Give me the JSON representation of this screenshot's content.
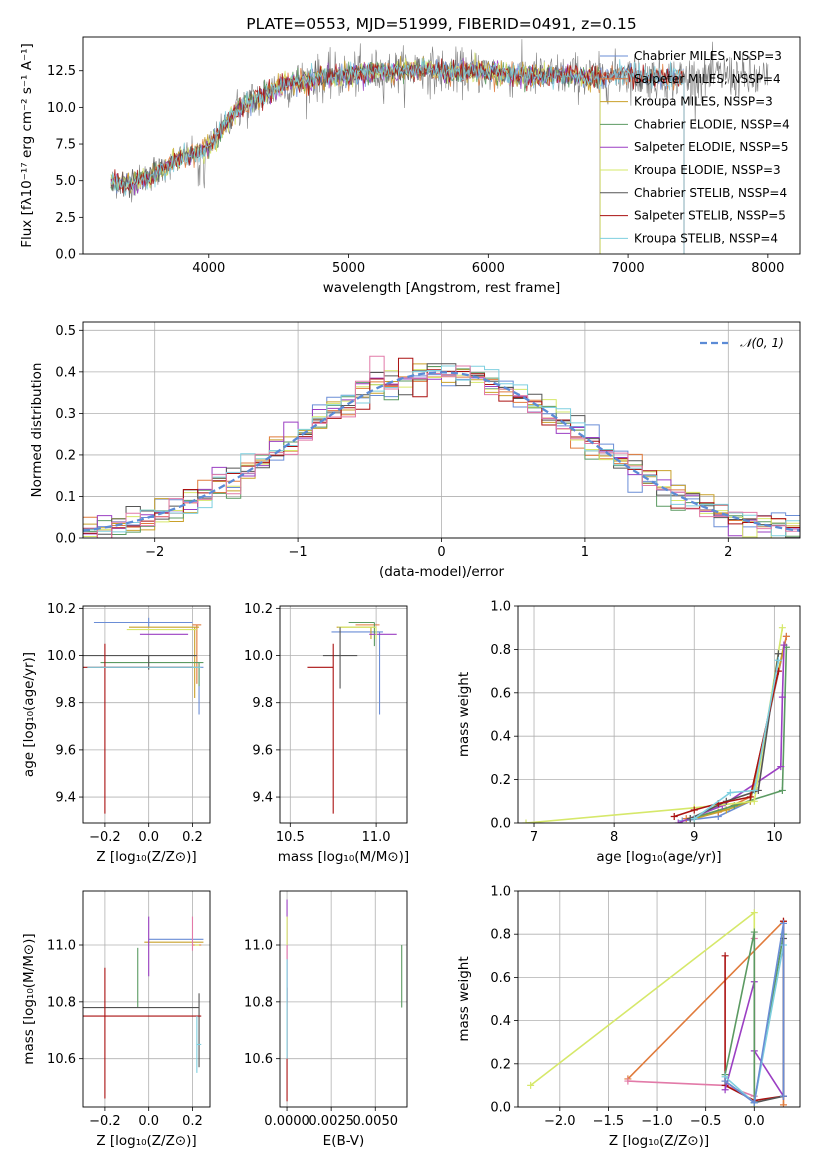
{
  "figure_title": "PLATE=0553, MJD=51999, FIBERID=0491, z=0.15",
  "colors": {
    "models": [
      "#6a8dd6",
      "#e07b3c",
      "#c9a12a",
      "#5b9a62",
      "#9b3fc3",
      "#d6e86a",
      "#555555",
      "#aa1111",
      "#7ecfdf"
    ],
    "extra": [
      "#e27aa8",
      "#b4e04a",
      "#e0b840"
    ]
  },
  "chart_data": [
    {
      "id": "spectrum",
      "type": "line",
      "title": "PLATE=0553, MJD=51999, FIBERID=0491, z=0.15",
      "xlabel": "wavelength [Angstrom, rest frame]",
      "ylabel": "Flux [fλ10⁻¹⁷ erg cm⁻² s⁻¹ A⁻¹]",
      "xlim": [
        3100,
        8230
      ],
      "ylim": [
        0,
        14.8
      ],
      "xticks": [
        "4000",
        "5000",
        "6000",
        "7000",
        "8000"
      ],
      "yticks": [
        "0.0",
        "2.5",
        "5.0",
        "7.5",
        "10.0",
        "12.5"
      ],
      "grid": false,
      "legend": "top-right",
      "legend_entries": [
        "Chabrier MILES, N_SSP=3",
        "Salpeter MILES, N_SSP=4",
        "Kroupa MILES, N_SSP=3",
        "Chabrier ELODIE, N_SSP=4",
        "Salpeter ELODIE, N_SSP=5",
        "Kroupa ELODIE, N_SSP=3",
        "Chabrier STELIB, N_SSP=4",
        "Salpeter STELIB, N_SSP=5",
        "Kroupa STELIB, N_SSP=4"
      ],
      "continuum": {
        "x": [
          3300,
          3400,
          3500,
          3600,
          3700,
          3800,
          3900,
          4000,
          4100,
          4200,
          4300,
          4400,
          4500,
          4600,
          4700,
          4800,
          4900,
          5000,
          5100,
          5200,
          5300,
          5400,
          5500,
          5600,
          5700,
          5800,
          5900,
          6000,
          6100,
          6200,
          6300,
          6400,
          6500,
          6600,
          6700,
          6800,
          6900,
          7000,
          7100,
          7200,
          7300,
          7400,
          7500,
          7600,
          7700,
          7800,
          7900,
          8000
        ],
        "y": [
          4.9,
          4.8,
          5.0,
          5.4,
          6.0,
          6.6,
          6.8,
          7.3,
          8.6,
          9.8,
          10.4,
          10.9,
          11.4,
          11.7,
          11.8,
          12.0,
          12.1,
          12.2,
          12.3,
          12.4,
          12.4,
          12.5,
          12.6,
          12.5,
          12.4,
          12.4,
          12.5,
          12.4,
          12.3,
          12.2,
          12.2,
          12.1,
          12.2,
          12.2,
          12.1,
          12.0,
          12.2,
          12.3,
          12.1,
          12.0,
          12.0,
          12.0,
          12.0,
          12.1,
          12.2,
          12.0,
          11.9,
          11.8
        ]
      },
      "model_xmax": [
        7400,
        7400,
        6800,
        6800,
        6800,
        6800,
        7400,
        7400,
        7400
      ]
    },
    {
      "id": "residuals",
      "type": "line",
      "xlabel": "(data-model)/error",
      "ylabel": "Normed distribution",
      "xlim": [
        -2.5,
        2.5
      ],
      "ylim": [
        0,
        0.52
      ],
      "xticks": [
        "−2",
        "−1",
        "0",
        "1",
        "2"
      ],
      "yticks": [
        "0.0",
        "0.1",
        "0.2",
        "0.3",
        "0.4",
        "0.5"
      ],
      "grid": true,
      "legend": "top-right",
      "legend_entries": [
        "𝒩(0, 1)"
      ],
      "gaussian": {
        "mean": 0,
        "sigma": 1
      }
    },
    {
      "id": "age-vs-Z",
      "type": "scatter",
      "xlabel": "Z [log₁₀(Z/Z⊙)]",
      "ylabel": "age  [log₁₀(age/yr)]",
      "xlim": [
        -0.3,
        0.28
      ],
      "ylim": [
        9.29,
        10.21
      ],
      "xticks": [
        "−0.2",
        "0.0",
        "0.2"
      ],
      "yticks": [
        "9.4",
        "9.6",
        "9.8",
        "10.0",
        "10.2"
      ],
      "grid": true,
      "errorbars": [
        {
          "x": 0.23,
          "y": 9.95,
          "xerr": [
            0.45,
            0.02
          ],
          "yerr": [
            0.2,
            0.0
          ],
          "c": 0
        },
        {
          "x": 0.0,
          "y": 10.14,
          "xerr": [
            0.25,
            0.2
          ],
          "yerr": [
            0.02,
            0.02
          ],
          "c": 0
        },
        {
          "x": 0.22,
          "y": 10.13,
          "xerr": [
            0.02,
            0.02
          ],
          "yerr": [
            0.25,
            0.0
          ],
          "c": 1
        },
        {
          "x": 0.21,
          "y": 10.12,
          "xerr": [
            0.3,
            0.02
          ],
          "yerr": [
            0.3,
            0.0
          ],
          "c": 2
        },
        {
          "x": 0.23,
          "y": 9.97,
          "xerr": [
            0.45,
            0.02
          ],
          "yerr": [
            0.1,
            0.0
          ],
          "c": 3
        },
        {
          "x": 0.16,
          "y": 10.09,
          "xerr": [
            0.2,
            0.02
          ],
          "yerr": [
            0.0,
            0.0
          ],
          "c": 4
        },
        {
          "x": 0.22,
          "y": 10.11,
          "xerr": [
            0.32,
            0.0
          ],
          "yerr": [
            0.0,
            0.0
          ],
          "c": 5
        },
        {
          "x": 0.0,
          "y": 10.0,
          "xerr": [
            0.3,
            0.22
          ],
          "yerr": [
            0.06,
            0.0
          ],
          "c": 6
        },
        {
          "x": -0.2,
          "y": 9.95,
          "xerr": [
            0.1,
            0.4
          ],
          "yerr": [
            0.62,
            0.1
          ],
          "c": 7
        },
        {
          "x": 0.22,
          "y": 9.95,
          "xerr": [
            0.5,
            0.02
          ],
          "yerr": [
            0.0,
            0.0
          ],
          "c": 8
        }
      ]
    },
    {
      "id": "age-vs-mass",
      "type": "scatter",
      "xlabel": "mass [log₁₀(M/M⊙)]",
      "ylabel": "",
      "xlim": [
        10.44,
        11.18
      ],
      "ylim": [
        9.29,
        10.21
      ],
      "xticks": [
        "10.5",
        "11.0"
      ],
      "yticks": [
        "9.4",
        "9.6",
        "9.8",
        "10.0",
        "10.2"
      ],
      "grid": true,
      "errorbars": [
        {
          "x": 11.02,
          "y": 10.1,
          "xerr": [
            0.28,
            0.02
          ],
          "yerr": [
            0.35,
            0.0
          ],
          "c": 0
        },
        {
          "x": 10.98,
          "y": 10.13,
          "xerr": [
            0.1,
            0.04
          ],
          "yerr": [
            0.0,
            0.0
          ],
          "c": 1
        },
        {
          "x": 10.97,
          "y": 10.12,
          "xerr": [
            0.2,
            0.02
          ],
          "yerr": [
            0.05,
            0.0
          ],
          "c": 2
        },
        {
          "x": 10.99,
          "y": 10.14,
          "xerr": [
            0.15,
            0.0
          ],
          "yerr": [
            0.1,
            0.0
          ],
          "c": 3
        },
        {
          "x": 11.06,
          "y": 10.09,
          "xerr": [
            0.1,
            0.06
          ],
          "yerr": [
            0.0,
            0.0
          ],
          "c": 4
        },
        {
          "x": 11.0,
          "y": 10.12,
          "xerr": [
            0.22,
            0.0
          ],
          "yerr": [
            0.05,
            0.0
          ],
          "c": 5
        },
        {
          "x": 10.79,
          "y": 10.0,
          "xerr": [
            0.1,
            0.1
          ],
          "yerr": [
            0.14,
            0.12
          ],
          "c": 6
        },
        {
          "x": 10.75,
          "y": 9.95,
          "xerr": [
            0.15,
            0.0
          ],
          "yerr": [
            0.62,
            0.1
          ],
          "c": 7
        }
      ]
    },
    {
      "id": "massweight-vs-age",
      "type": "line",
      "xlabel": "age  [log₁₀(age/yr)]",
      "ylabel": "mass weight",
      "xlim": [
        6.8,
        10.32
      ],
      "ylim": [
        0,
        1.0
      ],
      "xticks": [
        "7",
        "8",
        "9",
        "10"
      ],
      "yticks": [
        "0.0",
        "0.2",
        "0.4",
        "0.6",
        "0.8",
        "1.0"
      ],
      "grid": true,
      "series": [
        {
          "c": 0,
          "x": [
            8.85,
            9.3,
            9.7,
            10.15
          ],
          "y": [
            0.01,
            0.03,
            0.1,
            0.86
          ]
        },
        {
          "c": 1,
          "x": [
            8.9,
            9.3,
            9.7,
            10.15
          ],
          "y": [
            0.02,
            0.05,
            0.12,
            0.86
          ]
        },
        {
          "c": 2,
          "x": [
            9.0,
            9.4,
            9.7,
            10.12
          ],
          "y": [
            0.02,
            0.06,
            0.1,
            0.82
          ]
        },
        {
          "c": 3,
          "x": [
            8.95,
            9.5,
            10.1,
            10.15
          ],
          "y": [
            0.02,
            0.08,
            0.15,
            0.81
          ]
        },
        {
          "c": 4,
          "x": [
            8.8,
            9.35,
            10.08,
            10.1,
            10.12
          ],
          "y": [
            0.0,
            0.08,
            0.26,
            0.58,
            0.82
          ]
        },
        {
          "c": 5,
          "x": [
            6.9,
            9.0,
            9.75,
            10.1
          ],
          "y": [
            0.0,
            0.07,
            0.1,
            0.9
          ]
        },
        {
          "c": 6,
          "x": [
            8.95,
            9.4,
            9.8,
            10.05
          ],
          "y": [
            0.02,
            0.1,
            0.15,
            0.78
          ]
        },
        {
          "c": 7,
          "x": [
            8.75,
            9.0,
            9.3,
            9.7,
            10.05
          ],
          "y": [
            0.03,
            0.06,
            0.09,
            0.12,
            0.7
          ]
        },
        {
          "c": 8,
          "x": [
            9.0,
            9.45,
            9.75,
            10.05
          ],
          "y": [
            0.02,
            0.14,
            0.15,
            0.75
          ]
        }
      ]
    },
    {
      "id": "mass-vs-Z",
      "type": "scatter",
      "xlabel": "Z [log₁₀(Z/Z⊙)]",
      "ylabel": "mass [log₁₀(M/M⊙)]",
      "xlim": [
        -0.3,
        0.28
      ],
      "ylim": [
        10.43,
        11.19
      ],
      "xticks": [
        "−0.2",
        "0.0",
        "0.2"
      ],
      "yticks": [
        "10.6",
        "10.8",
        "11.0"
      ],
      "grid": true,
      "errorbars": [
        {
          "x": 0.2,
          "y": 11.02,
          "xerr": [
            0.2,
            0.05
          ],
          "yerr": [
            0.0,
            0.0
          ],
          "c": 0
        },
        {
          "x": 0.24,
          "y": 11.0,
          "xerr": [
            0.04,
            0.0
          ],
          "yerr": [
            0.0,
            0.0
          ],
          "c": 1
        },
        {
          "x": 0.2,
          "y": 11.01,
          "xerr": [
            0.22,
            0.05
          ],
          "yerr": [
            0.0,
            0.0
          ],
          "c": 2
        },
        {
          "x": -0.05,
          "y": 10.99,
          "xerr": [
            0.0,
            0.0
          ],
          "yerr": [
            0.21,
            0.0
          ],
          "c": 3
        },
        {
          "x": 0.0,
          "y": 11.0,
          "xerr": [
            0.0,
            0.0
          ],
          "yerr": [
            0.11,
            0.1
          ],
          "c": 4
        },
        {
          "x": 0.21,
          "y": 11.0,
          "xerr": [
            0.0,
            0.02
          ],
          "yerr": [
            0.0,
            0.0
          ],
          "c": 5
        },
        {
          "x": 0.23,
          "y": 10.78,
          "xerr": [
            0.55,
            0.0
          ],
          "yerr": [
            0.21,
            0.05
          ],
          "c": 6
        },
        {
          "x": -0.2,
          "y": 10.75,
          "xerr": [
            0.1,
            0.44
          ],
          "yerr": [
            0.29,
            0.17
          ],
          "c": 7
        },
        {
          "x": 0.22,
          "y": 10.65,
          "xerr": [
            0.0,
            0.02
          ],
          "yerr": [
            0.1,
            0.1
          ],
          "c": 8
        },
        {
          "x": 0.2,
          "y": 11.05,
          "xerr": [
            0.0,
            0.0
          ],
          "yerr": [
            0.07,
            0.05
          ],
          "c": 9
        }
      ]
    },
    {
      "id": "mass-vs-ebv",
      "type": "scatter",
      "xlabel": "E(B-V)",
      "ylabel": "",
      "xlim": [
        -0.0004,
        0.0068
      ],
      "ylim": [
        10.43,
        11.19
      ],
      "xticks": [
        "0.0000",
        "0.0025",
        "0.0050"
      ],
      "yticks": [
        "10.6",
        "10.8",
        "11.0"
      ],
      "grid": true,
      "errorbars": [
        {
          "x": 0.0,
          "y": 10.85,
          "xerr": [
            0,
            0
          ],
          "yerr": [
            0.4,
            0.0
          ],
          "c": 7
        },
        {
          "x": 0.0,
          "y": 11.0,
          "xerr": [
            0,
            0
          ],
          "yerr": [
            0.2,
            0.16
          ],
          "c": 4
        },
        {
          "x": 0.0,
          "y": 11.0,
          "xerr": [
            0,
            0
          ],
          "yerr": [
            0.4,
            0.1
          ],
          "c": 9
        },
        {
          "x": 0.0,
          "y": 10.8,
          "xerr": [
            0,
            0
          ],
          "yerr": [
            0.2,
            0.15
          ],
          "c": 8
        },
        {
          "x": 0.0,
          "y": 11.05,
          "xerr": [
            0,
            0
          ],
          "yerr": [
            0.05,
            0.05
          ],
          "c": 5
        },
        {
          "x": 0.0065,
          "y": 10.89,
          "xerr": [
            0,
            0
          ],
          "yerr": [
            0.11,
            0.11
          ],
          "c": 3
        }
      ]
    },
    {
      "id": "massweight-vs-Z",
      "type": "line",
      "xlabel": "Z [log₁₀(Z/Z⊙)]",
      "ylabel": "mass weight",
      "xlim": [
        -2.43,
        0.47
      ],
      "ylim": [
        0,
        1.0
      ],
      "xticks": [
        "−2.0",
        "−1.5",
        "−1.0",
        "−0.5",
        "0.0"
      ],
      "yticks": [
        "0.0",
        "0.2",
        "0.4",
        "0.6",
        "0.8",
        "1.0"
      ],
      "grid": true,
      "series": [
        {
          "c": 5,
          "x": [
            -2.3,
            0.0,
            0.0
          ],
          "y": [
            0.1,
            0.9,
            0.0
          ]
        },
        {
          "c": 1,
          "x": [
            -1.3,
            0.3,
            0.3
          ],
          "y": [
            0.13,
            0.86,
            0.01
          ]
        },
        {
          "c": 9,
          "x": [
            -1.3,
            -0.3,
            0.0,
            0.0
          ],
          "y": [
            0.12,
            0.1,
            0.05,
            0.78
          ]
        },
        {
          "c": 7,
          "x": [
            -0.3,
            -0.3,
            0.0,
            0.3,
            0.3
          ],
          "y": [
            0.7,
            0.1,
            0.03,
            0.05,
            0.86
          ]
        },
        {
          "c": 4,
          "x": [
            -0.3,
            0.0,
            0.0,
            0.3
          ],
          "y": [
            0.08,
            0.58,
            0.26,
            0.05
          ]
        },
        {
          "c": 3,
          "x": [
            -0.3,
            0.0,
            0.0,
            0.3
          ],
          "y": [
            0.15,
            0.81,
            0.02,
            0.8
          ]
        },
        {
          "c": 6,
          "x": [
            -0.3,
            0.0,
            0.3,
            0.3
          ],
          "y": [
            0.12,
            0.02,
            0.05,
            0.78
          ]
        },
        {
          "c": 8,
          "x": [
            -0.3,
            0.0,
            0.3
          ],
          "y": [
            0.14,
            0.02,
            0.75
          ]
        },
        {
          "c": 0,
          "x": [
            -0.3,
            0.0,
            0.3,
            0.3
          ],
          "y": [
            0.12,
            0.02,
            0.85,
            0.05
          ]
        }
      ]
    }
  ]
}
